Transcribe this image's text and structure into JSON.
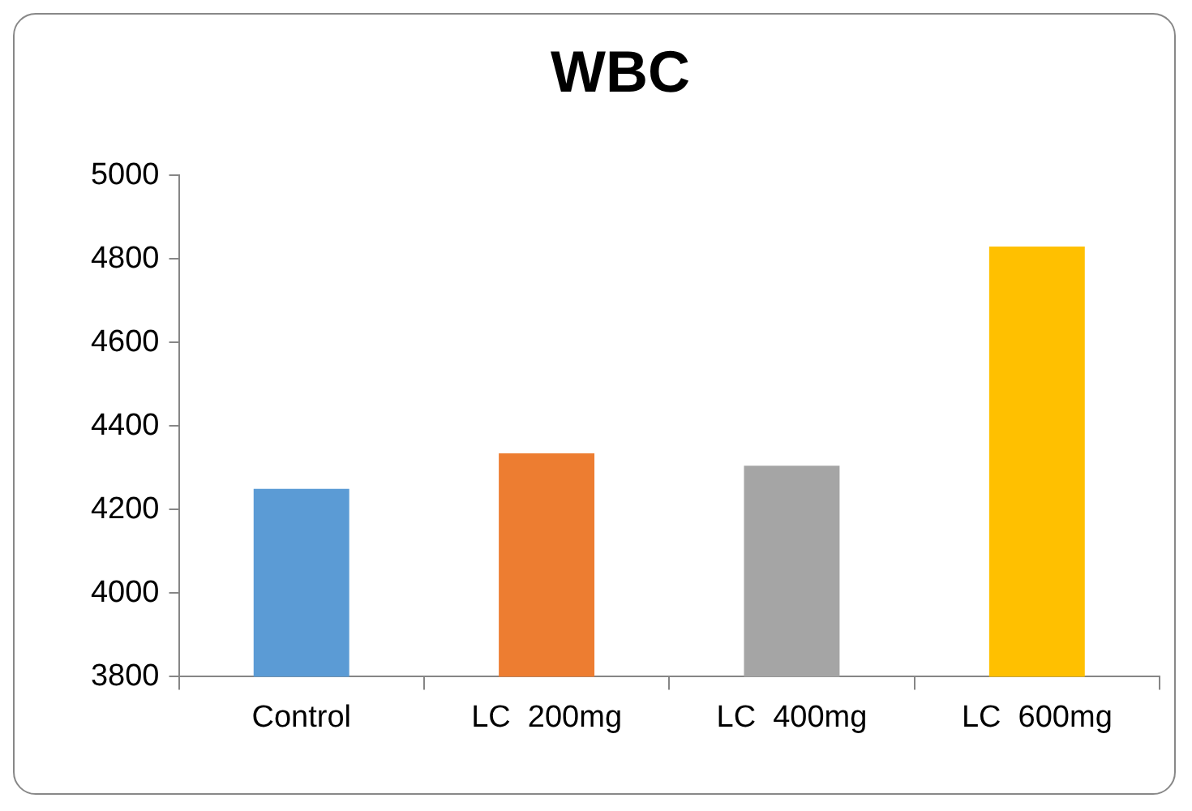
{
  "chart_data": {
    "type": "bar",
    "title": "WBC",
    "categories": [
      "Control",
      "LC  200mg",
      "LC  400mg",
      "LC  600mg"
    ],
    "values": [
      4250,
      4335,
      4305,
      4830
    ],
    "colors": [
      "#5b9bd5",
      "#ed7d31",
      "#a5a5a5",
      "#ffc000"
    ],
    "ylim": [
      3800,
      5000
    ],
    "yticks": [
      3800,
      4000,
      4200,
      4400,
      4600,
      4800,
      5000
    ],
    "grid": false,
    "legend": false
  }
}
